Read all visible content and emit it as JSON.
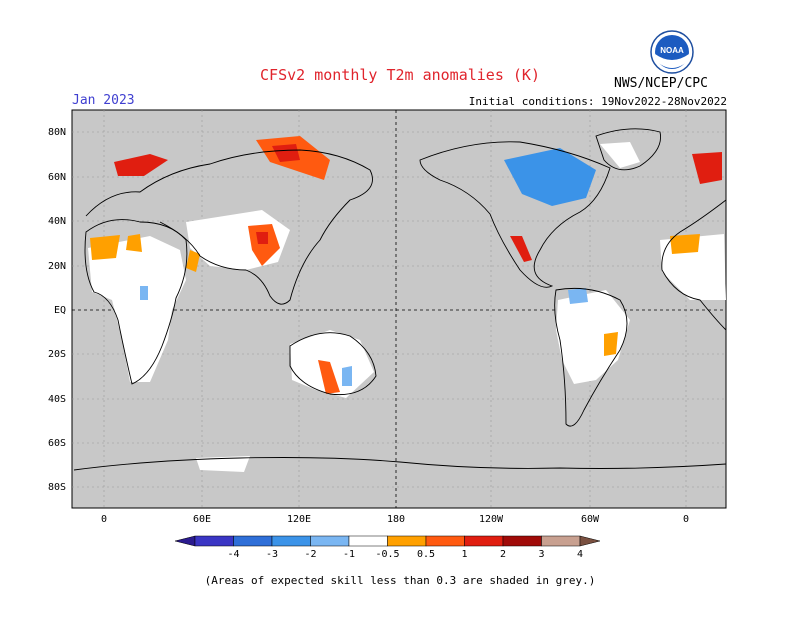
{
  "header": {
    "title": "CFSv2 monthly T2m anomalies (K)",
    "month": "Jan 2023",
    "initial_conditions": "Initial conditions: 19Nov2022-28Nov2022",
    "agency": "NWS/NCEP/CPC",
    "logo_text": "NOAA"
  },
  "map": {
    "lat_labels": [
      "80N",
      "60N",
      "40N",
      "20N",
      "EQ",
      "20S",
      "40S",
      "60S",
      "80S"
    ],
    "lon_labels": [
      "0",
      "60E",
      "120E",
      "180",
      "120W",
      "60W",
      "0"
    ],
    "background_color": "#c8c8c8"
  },
  "colorbar": {
    "labels": [
      "-4",
      "-3",
      "-2",
      "-1",
      "-0.5",
      "0.5",
      "1",
      "2",
      "3",
      "4"
    ],
    "colors": [
      "#2b1b8f",
      "#3a35c4",
      "#2f6fd8",
      "#3b93e8",
      "#7ab6f2",
      "#ffffff",
      "#ffa000",
      "#ff5a10",
      "#e01e10",
      "#a00a08",
      "#c8a090",
      "#7a5040"
    ]
  },
  "footnote": "(Areas of expected skill less than 0.3 are shaded in grey.)"
}
